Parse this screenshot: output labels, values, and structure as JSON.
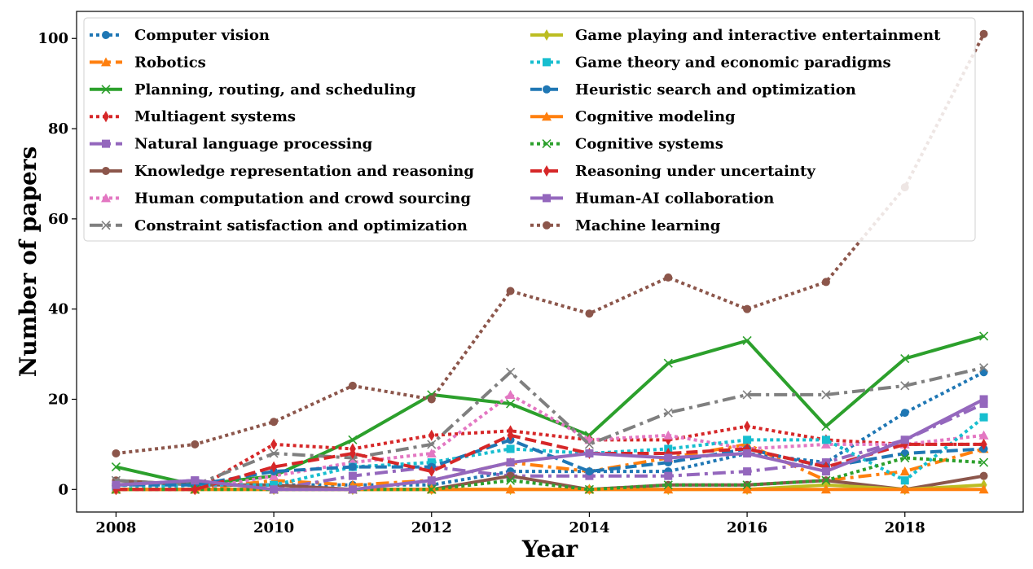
{
  "chart_data": {
    "type": "line",
    "xlabel": "Year",
    "ylabel": "Number of papers",
    "xlim": [
      2007.5,
      2019.5
    ],
    "ylim": [
      -5,
      106
    ],
    "xticks": [
      2008,
      2010,
      2012,
      2014,
      2016,
      2018
    ],
    "yticks": [
      0,
      20,
      40,
      60,
      80,
      100
    ],
    "grid": false,
    "legend_placement": "top-left, two columns",
    "x": [
      2008,
      2009,
      2010,
      2011,
      2012,
      2013,
      2014,
      2015,
      2016,
      2017,
      2018,
      2019
    ],
    "series": [
      {
        "name": "Computer vision",
        "color": "#1f77b4",
        "dash": "dotted",
        "marker": "circle",
        "values": [
          1,
          1,
          1,
          1,
          1,
          4,
          4,
          4,
          8,
          6,
          17,
          26
        ]
      },
      {
        "name": "Robotics",
        "color": "#ff7f0e",
        "dash": "dashdot",
        "marker": "triangle",
        "values": [
          0,
          0,
          2,
          1,
          2,
          6,
          4,
          7,
          10,
          2,
          4,
          9
        ]
      },
      {
        "name": "Planning, routing, and scheduling",
        "color": "#2ca02c",
        "dash": "solid",
        "marker": "x",
        "values": [
          5,
          1,
          3,
          11,
          21,
          19,
          12,
          28,
          33,
          14,
          29,
          34
        ]
      },
      {
        "name": "Multiagent systems",
        "color": "#d62728",
        "dash": "dotted",
        "marker": "thin_diamond",
        "values": [
          0,
          0,
          10,
          9,
          12,
          13,
          11,
          11,
          14,
          11,
          10,
          10
        ]
      },
      {
        "name": "Natural language processing",
        "color": "#9467bd",
        "dash": "dashdot",
        "marker": "square",
        "values": [
          1,
          2,
          0,
          3,
          5,
          3,
          3,
          3,
          4,
          6,
          11,
          19
        ]
      },
      {
        "name": "Knowledge representation and reasoning",
        "color": "#8c564b",
        "dash": "solid",
        "marker": "circle",
        "values": [
          2,
          1,
          1,
          0,
          0,
          3,
          0,
          1,
          1,
          2,
          0,
          3
        ]
      },
      {
        "name": "Human computation and crowd sourcing",
        "color": "#e377c2",
        "dash": "dotted",
        "marker": "triangle",
        "values": [
          0,
          0,
          3,
          6,
          8,
          21,
          11,
          12,
          9,
          10,
          10,
          12
        ]
      },
      {
        "name": "Constraint satisfaction and optimization",
        "color": "#7f7f7f",
        "dash": "dashdot",
        "marker": "x",
        "values": [
          2,
          1,
          8,
          7,
          10,
          26,
          10,
          17,
          21,
          21,
          23,
          27
        ]
      },
      {
        "name": "Game playing and interactive entertainment",
        "color": "#bcbd22",
        "dash": "solid",
        "marker": "thin_diamond",
        "values": [
          0,
          0,
          0,
          0,
          0,
          0,
          0,
          0,
          0,
          1,
          0,
          1
        ]
      },
      {
        "name": "Game theory and economic paradigms",
        "color": "#17becf",
        "dash": "dotted",
        "marker": "square",
        "values": [
          0,
          1,
          1,
          5,
          6,
          9,
          8,
          9,
          11,
          11,
          2,
          16
        ]
      },
      {
        "name": "Heuristic search and optimization",
        "color": "#1f77b4",
        "dash": "dashed",
        "marker": "circle",
        "values": [
          1,
          1,
          4,
          5,
          5,
          11,
          4,
          6,
          9,
          5,
          8,
          9
        ]
      },
      {
        "name": "Cognitive modeling",
        "color": "#ff7f0e",
        "dash": "solid",
        "marker": "triangle",
        "values": [
          0,
          0,
          0,
          0,
          0,
          0,
          0,
          0,
          0,
          0,
          0,
          0
        ]
      },
      {
        "name": "Cognitive systems",
        "color": "#2ca02c",
        "dash": "dotted",
        "marker": "x",
        "values": [
          0,
          0,
          0,
          0,
          0,
          2,
          0,
          1,
          1,
          2,
          7,
          6
        ]
      },
      {
        "name": "Reasoning under uncertainty",
        "color": "#d62728",
        "dash": "dashed",
        "marker": "thin_diamond",
        "values": [
          0,
          0,
          5,
          8,
          4,
          12,
          8,
          8,
          9,
          5,
          10,
          10
        ]
      },
      {
        "name": "Human-AI collaboration",
        "color": "#9467bd",
        "dash": "solid",
        "marker": "square",
        "values": [
          1,
          2,
          0,
          0,
          2,
          6,
          8,
          7,
          8,
          4,
          11,
          20
        ]
      },
      {
        "name": "Machine learning",
        "color": "#8c564b",
        "dash": "dotted",
        "marker": "circle",
        "values": [
          8,
          10,
          15,
          23,
          20,
          44,
          39,
          47,
          40,
          46,
          67,
          101
        ]
      }
    ]
  }
}
